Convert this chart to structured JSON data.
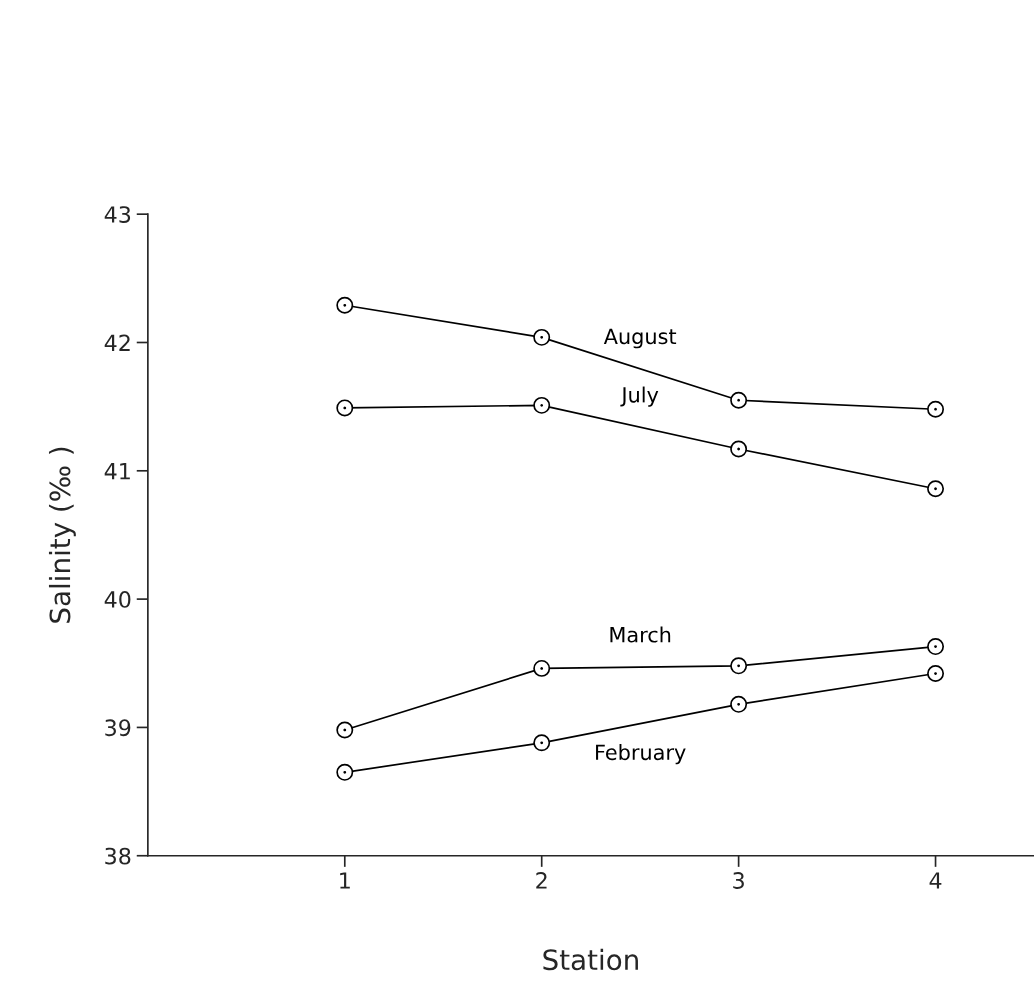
{
  "chart_data": {
    "type": "line",
    "xlabel": "Station",
    "ylabel": "Salinity (‰ )",
    "x": [
      1,
      2,
      3,
      4
    ],
    "series": [
      {
        "name": "August",
        "color": "#000000",
        "values": [
          42.29,
          42.04,
          41.55,
          41.48
        ]
      },
      {
        "name": "July",
        "color": "#000000",
        "values": [
          41.49,
          41.51,
          41.17,
          40.86
        ]
      },
      {
        "name": "March",
        "color": "#000000",
        "values": [
          38.98,
          39.46,
          39.48,
          39.63
        ]
      },
      {
        "name": "February",
        "color": "#000000",
        "values": [
          38.65,
          38.88,
          39.18,
          39.42
        ]
      }
    ],
    "xlim": [
      0,
      4.5
    ],
    "xticks": [
      1,
      2,
      3,
      4
    ],
    "ylim": [
      38,
      43
    ],
    "yticks": [
      38,
      39,
      40,
      41,
      42,
      43
    ],
    "marker": "circle",
    "line_style": "solid",
    "grid": false,
    "legend": false
  }
}
